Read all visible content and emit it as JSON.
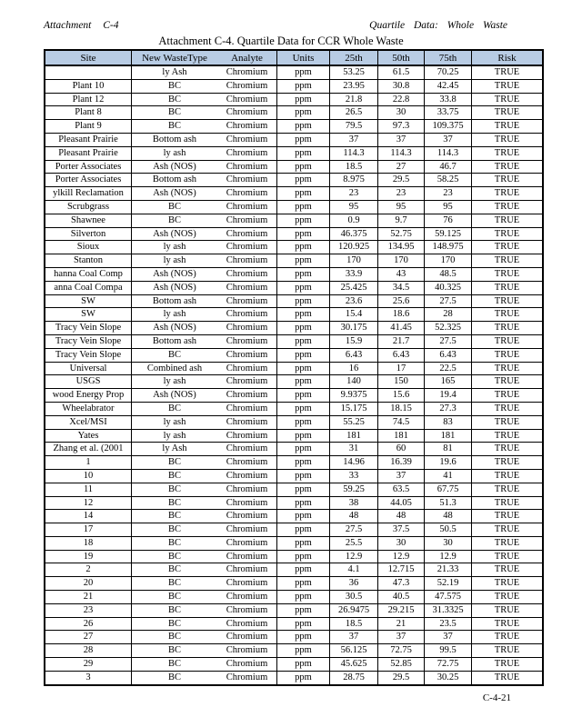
{
  "page": {
    "header_left": "Attachment C-4",
    "header_right": "Quartile Data: Whole Waste",
    "title": "Attachment C-4. Quartile Data for CCR Whole Waste",
    "page_number": "C-4-21"
  },
  "table": {
    "header_bg": "#b8cce4",
    "border_color": "#000000",
    "columns": [
      "Site",
      "New WasteType",
      "Analyte",
      "Units",
      "25th",
      "50th",
      "75th",
      "Risk"
    ],
    "column_keys": [
      "site",
      "waste-type",
      "analyte",
      "units",
      "25th",
      "50th",
      "75th",
      "risk"
    ],
    "rows": [
      [
        "",
        "ly Ash",
        "Chromium",
        "ppm",
        "53.25",
        "61.5",
        "70.25",
        "TRUE"
      ],
      [
        "Plant 10",
        "BC",
        "Chromium",
        "ppm",
        "23.95",
        "30.8",
        "42.45",
        "TRUE"
      ],
      [
        "Plant 12",
        "BC",
        "Chromium",
        "ppm",
        "21.8",
        "22.8",
        "33.8",
        "TRUE"
      ],
      [
        "Plant 8",
        "BC",
        "Chromium",
        "ppm",
        "26.5",
        "30",
        "33.75",
        "TRUE"
      ],
      [
        "Plant 9",
        "BC",
        "Chromium",
        "ppm",
        "79.5",
        "97.3",
        "109.375",
        "TRUE"
      ],
      [
        "Pleasant Prairie",
        "Bottom ash",
        "Chromium",
        "ppm",
        "37",
        "37",
        "37",
        "TRUE"
      ],
      [
        "Pleasant Prairie",
        "ly ash",
        "Chromium",
        "ppm",
        "114.3",
        "114.3",
        "114.3",
        "TRUE"
      ],
      [
        "Porter Associates",
        "Ash (NOS)",
        "Chromium",
        "ppm",
        "18.5",
        "27",
        "46.7",
        "TRUE"
      ],
      [
        "Porter Associates",
        "Bottom ash",
        "Chromium",
        "ppm",
        "8.975",
        "29.5",
        "58.25",
        "TRUE"
      ],
      [
        "ylkill Reclamation",
        "Ash (NOS)",
        "Chromium",
        "ppm",
        "23",
        "23",
        "23",
        "TRUE"
      ],
      [
        "Scrubgrass",
        "BC",
        "Chromium",
        "ppm",
        "95",
        "95",
        "95",
        "TRUE"
      ],
      [
        "Shawnee",
        "BC",
        "Chromium",
        "ppm",
        "0.9",
        "9.7",
        "76",
        "TRUE"
      ],
      [
        "Silverton",
        "Ash (NOS)",
        "Chromium",
        "ppm",
        "46.375",
        "52.75",
        "59.125",
        "TRUE"
      ],
      [
        "Sioux",
        "ly ash",
        "Chromium",
        "ppm",
        "120.925",
        "134.95",
        "148.975",
        "TRUE"
      ],
      [
        "Stanton",
        "ly ash",
        "Chromium",
        "ppm",
        "170",
        "170",
        "170",
        "TRUE"
      ],
      [
        "hanna Coal Comp",
        "Ash (NOS)",
        "Chromium",
        "ppm",
        "33.9",
        "43",
        "48.5",
        "TRUE"
      ],
      [
        "anna Coal Compa",
        "Ash (NOS)",
        "Chromium",
        "ppm",
        "25.425",
        "34.5",
        "40.325",
        "TRUE"
      ],
      [
        "SW",
        "Bottom ash",
        "Chromium",
        "ppm",
        "23.6",
        "25.6",
        "27.5",
        "TRUE"
      ],
      [
        "SW",
        "ly ash",
        "Chromium",
        "ppm",
        "15.4",
        "18.6",
        "28",
        "TRUE"
      ],
      [
        "Tracy Vein Slope",
        "Ash (NOS)",
        "Chromium",
        "ppm",
        "30.175",
        "41.45",
        "52.325",
        "TRUE"
      ],
      [
        "Tracy Vein Slope",
        "Bottom ash",
        "Chromium",
        "ppm",
        "15.9",
        "21.7",
        "27.5",
        "TRUE"
      ],
      [
        "Tracy Vein Slope",
        "BC",
        "Chromium",
        "ppm",
        "6.43",
        "6.43",
        "6.43",
        "TRUE"
      ],
      [
        "Universal",
        "Combined ash",
        "Chromium",
        "ppm",
        "16",
        "17",
        "22.5",
        "TRUE"
      ],
      [
        "USGS",
        "ly ash",
        "Chromium",
        "ppm",
        "140",
        "150",
        "165",
        "TRUE"
      ],
      [
        "wood Energy Prop",
        "Ash (NOS)",
        "Chromium",
        "ppm",
        "9.9375",
        "15.6",
        "19.4",
        "TRUE"
      ],
      [
        "Wheelabrator",
        "BC",
        "Chromium",
        "ppm",
        "15.175",
        "18.15",
        "27.3",
        "TRUE"
      ],
      [
        "Xcel/MSI",
        "ly ash",
        "Chromium",
        "ppm",
        "55.25",
        "74.5",
        "83",
        "TRUE"
      ],
      [
        "Yates",
        "ly ash",
        "Chromium",
        "ppm",
        "181",
        "181",
        "181",
        "TRUE"
      ],
      [
        "Zhang et al. (2001",
        "ly Ash",
        "Chromium",
        "ppm",
        "31",
        "60",
        "81",
        "TRUE"
      ],
      [
        "1",
        "BC",
        "Chromium",
        "ppm",
        "14.96",
        "16.39",
        "19.6",
        "TRUE"
      ],
      [
        "10",
        "BC",
        "Chromium",
        "ppm",
        "33",
        "37",
        "41",
        "TRUE"
      ],
      [
        "11",
        "BC",
        "Chromium",
        "ppm",
        "59.25",
        "63.5",
        "67.75",
        "TRUE"
      ],
      [
        "12",
        "BC",
        "Chromium",
        "ppm",
        "38",
        "44.05",
        "51.3",
        "TRUE"
      ],
      [
        "14",
        "BC",
        "Chromium",
        "ppm",
        "48",
        "48",
        "48",
        "TRUE"
      ],
      [
        "17",
        "BC",
        "Chromium",
        "ppm",
        "27.5",
        "37.5",
        "50.5",
        "TRUE"
      ],
      [
        "18",
        "BC",
        "Chromium",
        "ppm",
        "25.5",
        "30",
        "30",
        "TRUE"
      ],
      [
        "19",
        "BC",
        "Chromium",
        "ppm",
        "12.9",
        "12.9",
        "12.9",
        "TRUE"
      ],
      [
        "2",
        "BC",
        "Chromium",
        "ppm",
        "4.1",
        "12.715",
        "21.33",
        "TRUE"
      ],
      [
        "20",
        "BC",
        "Chromium",
        "ppm",
        "36",
        "47.3",
        "52.19",
        "TRUE"
      ],
      [
        "21",
        "BC",
        "Chromium",
        "ppm",
        "30.5",
        "40.5",
        "47.575",
        "TRUE"
      ],
      [
        "23",
        "BC",
        "Chromium",
        "ppm",
        "26.9475",
        "29.215",
        "31.3325",
        "TRUE"
      ],
      [
        "26",
        "BC",
        "Chromium",
        "ppm",
        "18.5",
        "21",
        "23.5",
        "TRUE"
      ],
      [
        "27",
        "BC",
        "Chromium",
        "ppm",
        "37",
        "37",
        "37",
        "TRUE"
      ],
      [
        "28",
        "BC",
        "Chromium",
        "ppm",
        "56.125",
        "72.75",
        "99.5",
        "TRUE"
      ],
      [
        "29",
        "BC",
        "Chromium",
        "ppm",
        "45.625",
        "52.85",
        "72.75",
        "TRUE"
      ],
      [
        "3",
        "BC",
        "Chromium",
        "ppm",
        "28.75",
        "29.5",
        "30.25",
        "TRUE"
      ]
    ]
  }
}
